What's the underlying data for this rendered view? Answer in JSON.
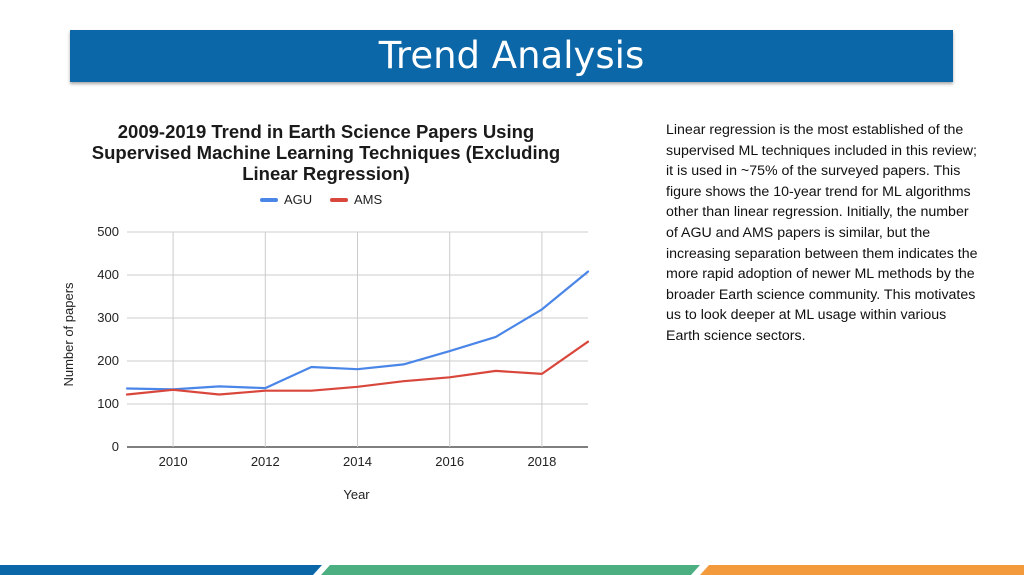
{
  "slide": {
    "title": "Trend Analysis",
    "description": "Linear regression is the most established of the supervised ML techniques included in this review; it is used in ~75% of the surveyed papers. This figure shows the 10-year trend for ML algorithms other than linear regression. Initially, the number of AGU and AMS papers is similar, but the increasing separation between them indicates the more rapid adoption of newer ML methods by the broader Earth science community. This motivates us to look deeper at ML usage within various Earth science sectors."
  },
  "colors": {
    "header": "#0b67a8",
    "footer_blue": "#0b67a8",
    "footer_green": "#4caf82",
    "footer_orange": "#f39a3c"
  },
  "chart_data": {
    "type": "line",
    "title_lines": [
      "2009-2019 Trend in Earth Science Papers Using",
      "Supervised Machine Learning Techniques (Excluding",
      "Linear Regression)"
    ],
    "xlabel": "Year",
    "ylabel": "Number of papers",
    "x": [
      2009,
      2010,
      2011,
      2012,
      2013,
      2014,
      2015,
      2016,
      2017,
      2018,
      2019
    ],
    "xlim": [
      2009,
      2019
    ],
    "ylim": [
      0,
      500
    ],
    "xticks": [
      2010,
      2012,
      2014,
      2016,
      2018
    ],
    "yticks": [
      0,
      100,
      200,
      300,
      400,
      500
    ],
    "grid": true,
    "legend": "top-center",
    "series": [
      {
        "name": "AGU",
        "color": "#4a86e8",
        "values": [
          136,
          134,
          141,
          137,
          186,
          181,
          192,
          223,
          256,
          320,
          408
        ]
      },
      {
        "name": "AMS",
        "color": "#d9473c",
        "values": [
          122,
          133,
          122,
          131,
          131,
          140,
          153,
          162,
          177,
          170,
          245
        ]
      }
    ]
  }
}
